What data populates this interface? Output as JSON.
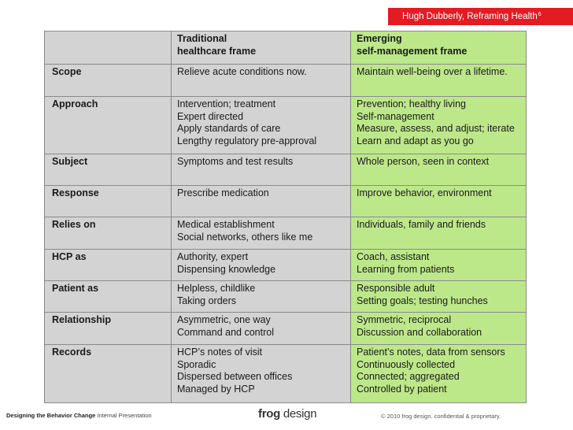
{
  "header": {
    "attribution": "Hugh Dubberly, Reframing Health",
    "attribution_sup": "6"
  },
  "table": {
    "columns": [
      "",
      [
        "Traditional",
        "healthcare frame"
      ],
      [
        "Emerging",
        "self-management frame"
      ]
    ],
    "rows": [
      {
        "label": "Scope",
        "traditional": [
          "Relieve acute conditions now."
        ],
        "emerging": [
          "Maintain well-being over a lifetime."
        ]
      },
      {
        "label": "Approach",
        "traditional": [
          "Intervention; treatment",
          "Expert directed",
          "Apply standards of care",
          "Lengthy regulatory pre-approval"
        ],
        "emerging": [
          "Prevention; healthy living",
          "Self-management",
          "Measure, assess, and adjust; iterate",
          "Learn and adapt as you go"
        ]
      },
      {
        "label": "Subject",
        "traditional": [
          "Symptoms and test results"
        ],
        "emerging": [
          "Whole person, seen in context"
        ]
      },
      {
        "label": "Response",
        "traditional": [
          "Prescribe medication"
        ],
        "emerging": [
          "Improve behavior, environment"
        ]
      },
      {
        "label": "Relies on",
        "traditional": [
          "Medical establishment",
          "Social networks, others like me"
        ],
        "emerging": [
          "Individuals, family and friends"
        ]
      },
      {
        "label": "HCP as",
        "traditional": [
          "Authority, expert",
          "Dispensing knowledge"
        ],
        "emerging": [
          "Coach, assistant",
          "Learning from patients"
        ]
      },
      {
        "label": "Patient as",
        "traditional": [
          "Helpless, childlike",
          "Taking orders"
        ],
        "emerging": [
          "Responsible adult",
          "Setting goals; testing hunches"
        ]
      },
      {
        "label": "Relationship",
        "traditional": [
          "Asymmetric, one way",
          "Command and control"
        ],
        "emerging": [
          "Symmetric, reciprocal",
          "Discussion and collaboration"
        ]
      },
      {
        "label": "Records",
        "traditional": [
          "HCP’s notes of visit",
          "Sporadic",
          "Dispersed between offices",
          "Managed by HCP"
        ],
        "emerging": [
          "Patient’s notes, data from sensors",
          "Continuously collected",
          "Connected; aggregated",
          "Controlled by patient"
        ]
      }
    ]
  },
  "footer": {
    "left_bold": "Designing the Behavior Change",
    "left_rest": "Internal Presentation",
    "logo_a": "frog",
    "logo_b": "design",
    "copyright": "© 2010 frog design. confidential & proprietary."
  },
  "colors": {
    "accent_red": "#e31b23",
    "gray_cell": "#d3d3d3",
    "green_cell": "#bde88a"
  }
}
